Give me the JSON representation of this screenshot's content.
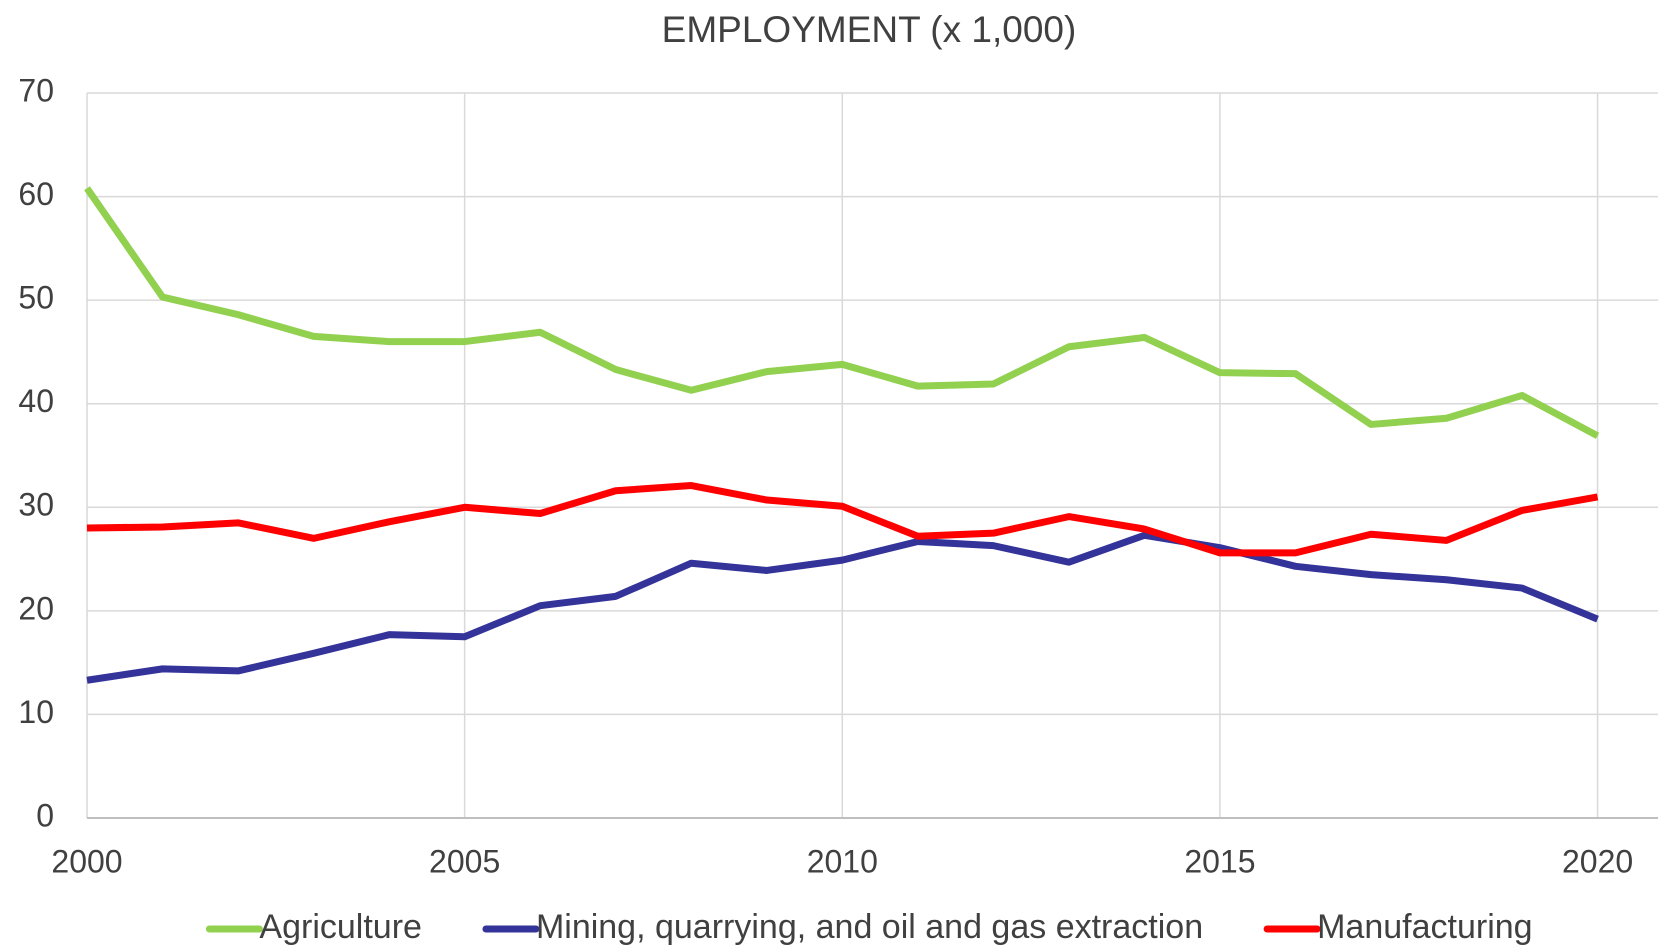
{
  "chart_data": {
    "type": "line",
    "title": "EMPLOYMENT  (x 1,000)",
    "x": [
      2000,
      2001,
      2002,
      2003,
      2004,
      2005,
      2006,
      2007,
      2008,
      2009,
      2010,
      2011,
      2012,
      2013,
      2014,
      2015,
      2016,
      2017,
      2018,
      2019,
      2020
    ],
    "series": [
      {
        "name": "Agriculture",
        "color": "#92d050",
        "values": [
          60.8,
          50.3,
          48.6,
          46.5,
          46.0,
          46.0,
          46.9,
          43.3,
          41.3,
          43.1,
          43.8,
          41.7,
          41.9,
          45.5,
          46.4,
          43.0,
          42.9,
          38.0,
          38.6,
          40.8,
          36.9
        ]
      },
      {
        "name": "Mining, quarrying, and oil and gas extraction",
        "color": "#333399",
        "values": [
          13.3,
          14.4,
          14.2,
          15.9,
          17.7,
          17.5,
          20.5,
          21.4,
          24.6,
          23.9,
          24.9,
          26.7,
          26.3,
          24.7,
          27.3,
          26.1,
          24.3,
          23.5,
          23.0,
          22.2,
          19.2
        ]
      },
      {
        "name": "Manufacturing",
        "color": "#ff0000",
        "values": [
          28.0,
          28.1,
          28.5,
          27.0,
          28.6,
          30.0,
          29.4,
          31.6,
          32.1,
          30.7,
          30.1,
          27.2,
          27.5,
          29.1,
          27.9,
          25.6,
          25.6,
          27.4,
          26.8,
          29.7,
          31.0
        ]
      }
    ],
    "xlim": [
      2000,
      2020.8
    ],
    "xticks": [
      2000,
      2005,
      2010,
      2015,
      2020
    ],
    "ylim": [
      0,
      70
    ],
    "yticks": [
      0,
      10,
      20,
      30,
      40,
      50,
      60,
      70
    ],
    "grid": true,
    "legend": "bottom"
  }
}
